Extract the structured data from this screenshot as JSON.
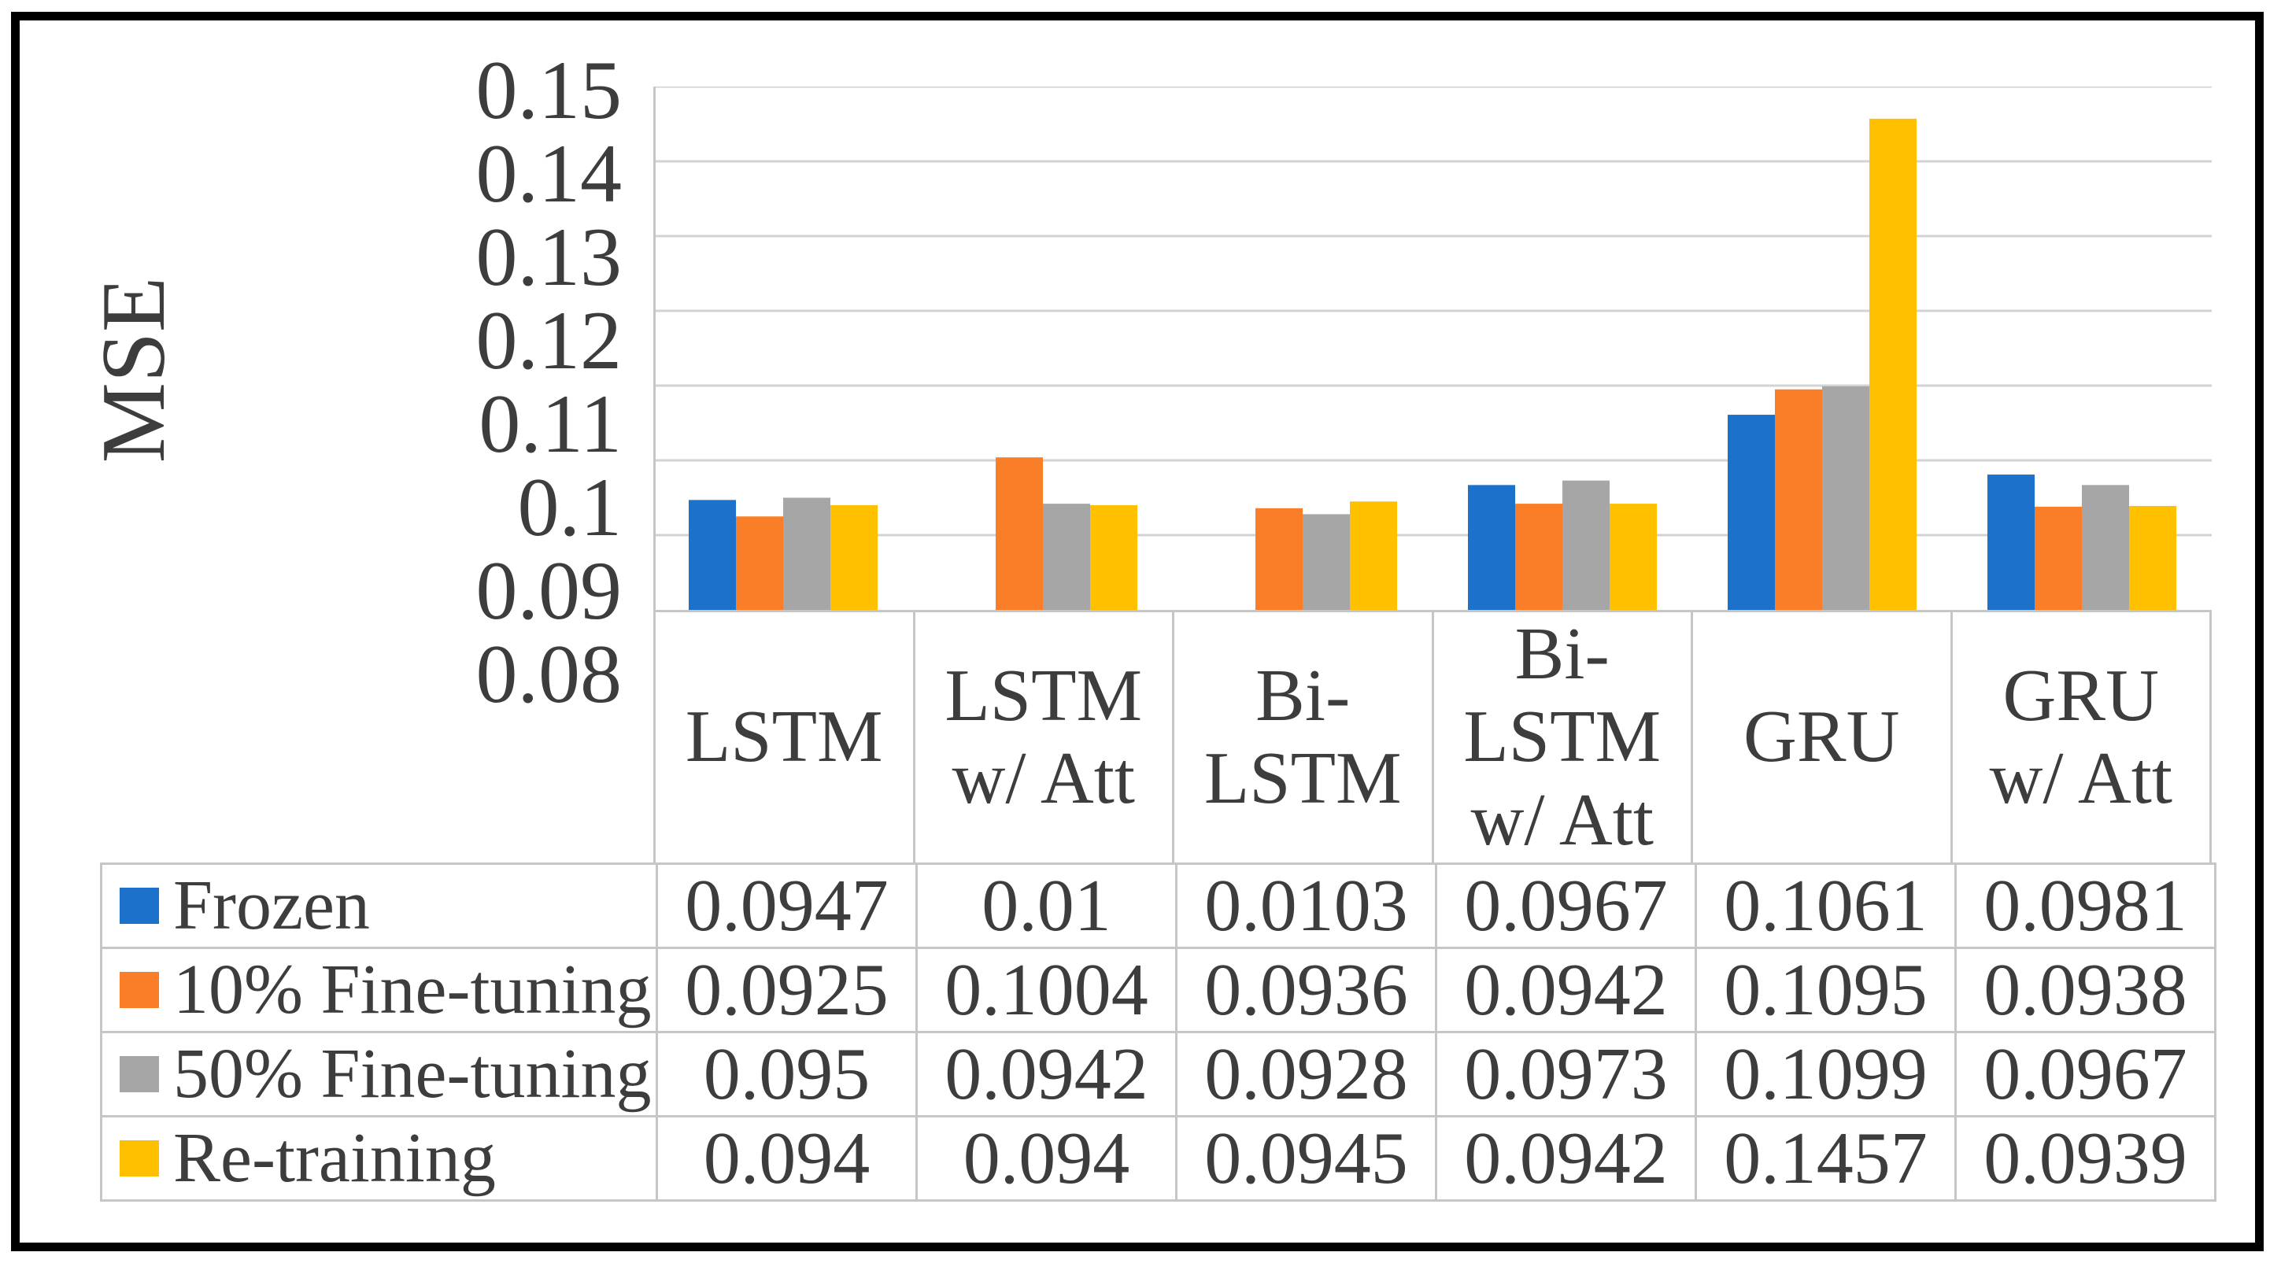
{
  "chart_data": {
    "type": "bar",
    "title": "",
    "ylabel": "MSE",
    "xlabel": "",
    "ylim": [
      0.08,
      0.15
    ],
    "ytick_step": 0.01,
    "ytick_labels": [
      "0.15",
      "0.14",
      "0.13",
      "0.12",
      "0.11",
      "0.1",
      "0.09",
      "0.08"
    ],
    "grid": true,
    "gridline_color": "#d3d3d3",
    "axis_line_color": "#c6c6c6",
    "legend_position": "table-left",
    "categories": [
      "LSTM",
      "LSTM w/ Att",
      "Bi-LSTM",
      "Bi-LSTM w/ Att",
      "GRU",
      "GRU w/ Att"
    ],
    "series": [
      {
        "name": "Frozen",
        "color": "#1C72CB",
        "values": [
          0.0947,
          0.01,
          0.0103,
          0.0967,
          0.1061,
          0.0981
        ]
      },
      {
        "name": "10% Fine-tuning",
        "color": "#F97E27",
        "values": [
          0.0925,
          0.1004,
          0.0936,
          0.0942,
          0.1095,
          0.0938
        ]
      },
      {
        "name": "50% Fine-tuning",
        "color": "#A6A6A6",
        "values": [
          0.095,
          0.0942,
          0.0928,
          0.0973,
          0.1099,
          0.0967
        ]
      },
      {
        "name": "Re-training",
        "color": "#FFC000",
        "values": [
          0.094,
          0.094,
          0.0945,
          0.0942,
          0.1457,
          0.0939
        ]
      }
    ],
    "note": "Bars are omitted when a value falls below the 0.08 axis minimum"
  },
  "table": {
    "column_headers": [
      "LSTM",
      "LSTM\nw/ Att",
      "Bi-\nLSTM",
      "Bi-\nLSTM\nw/ Att",
      "GRU",
      "GRU\nw/ Att"
    ],
    "rows": [
      {
        "label": "Frozen",
        "values": [
          "0.0947",
          "0.01",
          "0.0103",
          "0.0967",
          "0.1061",
          "0.0981"
        ]
      },
      {
        "label": "10% Fine-tuning",
        "values": [
          "0.0925",
          "0.1004",
          "0.0936",
          "0.0942",
          "0.1095",
          "0.0938"
        ]
      },
      {
        "label": "50% Fine-tuning",
        "values": [
          "0.095",
          "0.0942",
          "0.0928",
          "0.0973",
          "0.1099",
          "0.0967"
        ]
      },
      {
        "label": "Re-training",
        "values": [
          "0.094",
          "0.094",
          "0.0945",
          "0.0942",
          "0.1457",
          "0.0939"
        ]
      }
    ]
  },
  "colors": {
    "frame": "#000000",
    "text": "#3d3d3d",
    "table_border": "#c6c6c6",
    "series_blue": "#1C72CB",
    "series_orange": "#F97E27",
    "series_gray": "#A6A6A6",
    "series_yellow": "#FFC000"
  }
}
